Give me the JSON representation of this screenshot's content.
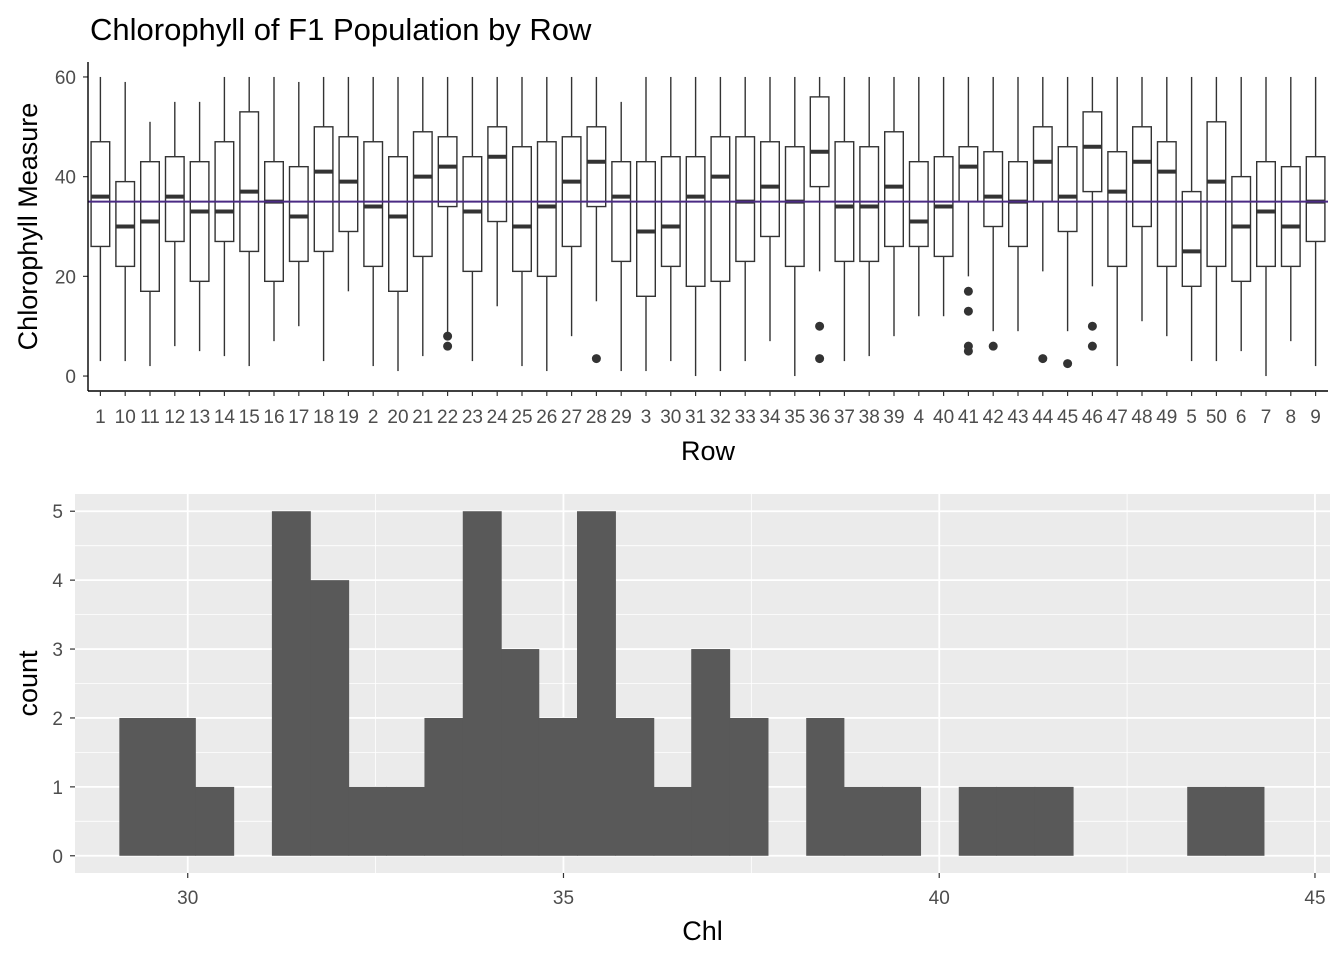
{
  "chart_data": [
    {
      "type": "box",
      "title": "Chlorophyll of F1 Population by Row",
      "xlabel": "Row",
      "ylabel": "Chlorophyll Measure",
      "ylim": [
        -3,
        63
      ],
      "yticks": [
        0,
        20,
        40,
        60
      ],
      "grid": false,
      "reference_line": {
        "y": 35,
        "color": "#4b2b84"
      },
      "categories": [
        "1",
        "10",
        "11",
        "12",
        "13",
        "14",
        "15",
        "16",
        "17",
        "18",
        "19",
        "2",
        "20",
        "21",
        "22",
        "23",
        "24",
        "25",
        "26",
        "27",
        "28",
        "29",
        "3",
        "30",
        "31",
        "32",
        "33",
        "34",
        "35",
        "36",
        "37",
        "38",
        "39",
        "4",
        "40",
        "41",
        "42",
        "43",
        "44",
        "45",
        "46",
        "47",
        "48",
        "49",
        "5",
        "50",
        "6",
        "7",
        "8",
        "9"
      ],
      "boxes": [
        {
          "min": 3,
          "q1": 26,
          "median": 36,
          "q3": 47,
          "max": 60,
          "outliers": []
        },
        {
          "min": 3,
          "q1": 22,
          "median": 30,
          "q3": 39,
          "max": 59,
          "outliers": []
        },
        {
          "min": 2,
          "q1": 17,
          "median": 31,
          "q3": 43,
          "max": 51,
          "outliers": []
        },
        {
          "min": 6,
          "q1": 27,
          "median": 36,
          "q3": 44,
          "max": 55,
          "outliers": []
        },
        {
          "min": 5,
          "q1": 19,
          "median": 33,
          "q3": 43,
          "max": 55,
          "outliers": []
        },
        {
          "min": 4,
          "q1": 27,
          "median": 33,
          "q3": 47,
          "max": 60,
          "outliers": []
        },
        {
          "min": 2,
          "q1": 25,
          "median": 37,
          "q3": 53,
          "max": 60,
          "outliers": []
        },
        {
          "min": 7,
          "q1": 19,
          "median": 35,
          "q3": 43,
          "max": 60,
          "outliers": []
        },
        {
          "min": 10,
          "q1": 23,
          "median": 32,
          "q3": 42,
          "max": 59,
          "outliers": []
        },
        {
          "min": 3,
          "q1": 25,
          "median": 41,
          "q3": 50,
          "max": 60,
          "outliers": []
        },
        {
          "min": 17,
          "q1": 29,
          "median": 39,
          "q3": 48,
          "max": 60,
          "outliers": []
        },
        {
          "min": 2,
          "q1": 22,
          "median": 34,
          "q3": 47,
          "max": 60,
          "outliers": []
        },
        {
          "min": 1,
          "q1": 17,
          "median": 32,
          "q3": 44,
          "max": 60,
          "outliers": []
        },
        {
          "min": 4,
          "q1": 24,
          "median": 40,
          "q3": 49,
          "max": 60,
          "outliers": []
        },
        {
          "min": 8,
          "q1": 34,
          "median": 42,
          "q3": 48,
          "max": 60,
          "outliers": [
            6,
            8
          ]
        },
        {
          "min": 3,
          "q1": 21,
          "median": 33,
          "q3": 44,
          "max": 60,
          "outliers": []
        },
        {
          "min": 14,
          "q1": 31,
          "median": 44,
          "q3": 50,
          "max": 60,
          "outliers": []
        },
        {
          "min": 2,
          "q1": 21,
          "median": 30,
          "q3": 46,
          "max": 60,
          "outliers": []
        },
        {
          "min": 1,
          "q1": 20,
          "median": 34,
          "q3": 47,
          "max": 60,
          "outliers": []
        },
        {
          "min": 8,
          "q1": 26,
          "median": 39,
          "q3": 48,
          "max": 60,
          "outliers": []
        },
        {
          "min": 15,
          "q1": 34,
          "median": 43,
          "q3": 50,
          "max": 60,
          "outliers": [
            3.5
          ]
        },
        {
          "min": 1,
          "q1": 23,
          "median": 36,
          "q3": 43,
          "max": 55,
          "outliers": []
        },
        {
          "min": 1,
          "q1": 16,
          "median": 29,
          "q3": 43,
          "max": 60,
          "outliers": []
        },
        {
          "min": 3,
          "q1": 22,
          "median": 30,
          "q3": 44,
          "max": 60,
          "outliers": []
        },
        {
          "min": 0,
          "q1": 18,
          "median": 36,
          "q3": 44,
          "max": 60,
          "outliers": []
        },
        {
          "min": 1,
          "q1": 19,
          "median": 40,
          "q3": 48,
          "max": 60,
          "outliers": []
        },
        {
          "min": 3,
          "q1": 23,
          "median": 35,
          "q3": 48,
          "max": 60,
          "outliers": []
        },
        {
          "min": 7,
          "q1": 28,
          "median": 38,
          "q3": 47,
          "max": 60,
          "outliers": []
        },
        {
          "min": 0,
          "q1": 22,
          "median": 35,
          "q3": 46,
          "max": 60,
          "outliers": []
        },
        {
          "min": 21,
          "q1": 38,
          "median": 45,
          "q3": 56,
          "max": 60,
          "outliers": [
            10,
            3.5
          ]
        },
        {
          "min": 3,
          "q1": 23,
          "median": 34,
          "q3": 47,
          "max": 60,
          "outliers": []
        },
        {
          "min": 4,
          "q1": 23,
          "median": 34,
          "q3": 46,
          "max": 60,
          "outliers": []
        },
        {
          "min": 8,
          "q1": 26,
          "median": 38,
          "q3": 49,
          "max": 60,
          "outliers": []
        },
        {
          "min": 12,
          "q1": 26,
          "median": 31,
          "q3": 43,
          "max": 60,
          "outliers": []
        },
        {
          "min": 12,
          "q1": 24,
          "median": 34,
          "q3": 44,
          "max": 60,
          "outliers": []
        },
        {
          "min": 20,
          "q1": 35,
          "median": 42,
          "q3": 46,
          "max": 60,
          "outliers": [
            17,
            13,
            6,
            5
          ]
        },
        {
          "min": 9,
          "q1": 30,
          "median": 36,
          "q3": 45,
          "max": 60,
          "outliers": [
            6
          ]
        },
        {
          "min": 9,
          "q1": 26,
          "median": 35,
          "q3": 43,
          "max": 60,
          "outliers": []
        },
        {
          "min": 21,
          "q1": 35,
          "median": 43,
          "q3": 50,
          "max": 60,
          "outliers": [
            3.5
          ]
        },
        {
          "min": 9,
          "q1": 29,
          "median": 36,
          "q3": 46,
          "max": 60,
          "outliers": [
            2.5
          ]
        },
        {
          "min": 18,
          "q1": 37,
          "median": 46,
          "q3": 53,
          "max": 60,
          "outliers": [
            10,
            6
          ]
        },
        {
          "min": 2,
          "q1": 22,
          "median": 37,
          "q3": 45,
          "max": 60,
          "outliers": []
        },
        {
          "min": 11,
          "q1": 30,
          "median": 43,
          "q3": 50,
          "max": 60,
          "outliers": []
        },
        {
          "min": 8,
          "q1": 22,
          "median": 41,
          "q3": 47,
          "max": 60,
          "outliers": []
        },
        {
          "min": 3,
          "q1": 18,
          "median": 25,
          "q3": 37,
          "max": 60,
          "outliers": []
        },
        {
          "min": 3,
          "q1": 22,
          "median": 39,
          "q3": 51,
          "max": 60,
          "outliers": []
        },
        {
          "min": 5,
          "q1": 19,
          "median": 30,
          "q3": 40,
          "max": 60,
          "outliers": []
        },
        {
          "min": 0,
          "q1": 22,
          "median": 33,
          "q3": 43,
          "max": 60,
          "outliers": []
        },
        {
          "min": 7,
          "q1": 22,
          "median": 30,
          "q3": 42,
          "max": 60,
          "outliers": []
        },
        {
          "min": 2,
          "q1": 27,
          "median": 35,
          "q3": 44,
          "max": 60,
          "outliers": []
        }
      ]
    },
    {
      "type": "histogram",
      "title": "",
      "xlabel": "Chl",
      "ylabel": "count",
      "xlim": [
        28.5,
        45.2
      ],
      "ylim": [
        -0.25,
        5.25
      ],
      "xticks": [
        30,
        35,
        40,
        45
      ],
      "yticks": [
        0,
        1,
        2,
        3,
        4,
        5
      ],
      "grid": true,
      "bin_width": 0.508,
      "bins": [
        {
          "x0": 29.09,
          "x1": 29.6,
          "count": 2
        },
        {
          "x0": 29.6,
          "x1": 30.1,
          "count": 2
        },
        {
          "x0": 30.1,
          "x1": 30.61,
          "count": 1
        },
        {
          "x0": 30.61,
          "x1": 31.12,
          "count": 0
        },
        {
          "x0": 31.12,
          "x1": 31.63,
          "count": 5
        },
        {
          "x0": 31.63,
          "x1": 32.14,
          "count": 4
        },
        {
          "x0": 32.14,
          "x1": 32.64,
          "count": 1
        },
        {
          "x0": 32.64,
          "x1": 33.15,
          "count": 1
        },
        {
          "x0": 33.15,
          "x1": 33.66,
          "count": 2
        },
        {
          "x0": 33.66,
          "x1": 34.17,
          "count": 5
        },
        {
          "x0": 34.17,
          "x1": 34.67,
          "count": 3
        },
        {
          "x0": 34.67,
          "x1": 35.18,
          "count": 2
        },
        {
          "x0": 35.18,
          "x1": 35.69,
          "count": 5
        },
        {
          "x0": 35.69,
          "x1": 36.2,
          "count": 2
        },
        {
          "x0": 36.2,
          "x1": 36.7,
          "count": 1
        },
        {
          "x0": 36.7,
          "x1": 37.21,
          "count": 3
        },
        {
          "x0": 37.21,
          "x1": 37.72,
          "count": 2
        },
        {
          "x0": 37.72,
          "x1": 38.23,
          "count": 0
        },
        {
          "x0": 38.23,
          "x1": 38.73,
          "count": 2
        },
        {
          "x0": 38.73,
          "x1": 39.24,
          "count": 1
        },
        {
          "x0": 39.24,
          "x1": 39.75,
          "count": 1
        },
        {
          "x0": 39.75,
          "x1": 40.26,
          "count": 0
        },
        {
          "x0": 40.26,
          "x1": 40.76,
          "count": 1
        },
        {
          "x0": 40.76,
          "x1": 41.27,
          "count": 1
        },
        {
          "x0": 41.27,
          "x1": 41.78,
          "count": 1
        },
        {
          "x0": 41.78,
          "x1": 42.29,
          "count": 0
        },
        {
          "x0": 42.29,
          "x1": 42.79,
          "count": 0
        },
        {
          "x0": 42.79,
          "x1": 43.3,
          "count": 0
        },
        {
          "x0": 43.3,
          "x1": 43.81,
          "count": 1
        },
        {
          "x0": 43.81,
          "x1": 44.32,
          "count": 1
        }
      ],
      "colors": {
        "bar": "#595959",
        "panel": "#ebebeb",
        "grid": "#ffffff"
      }
    }
  ]
}
